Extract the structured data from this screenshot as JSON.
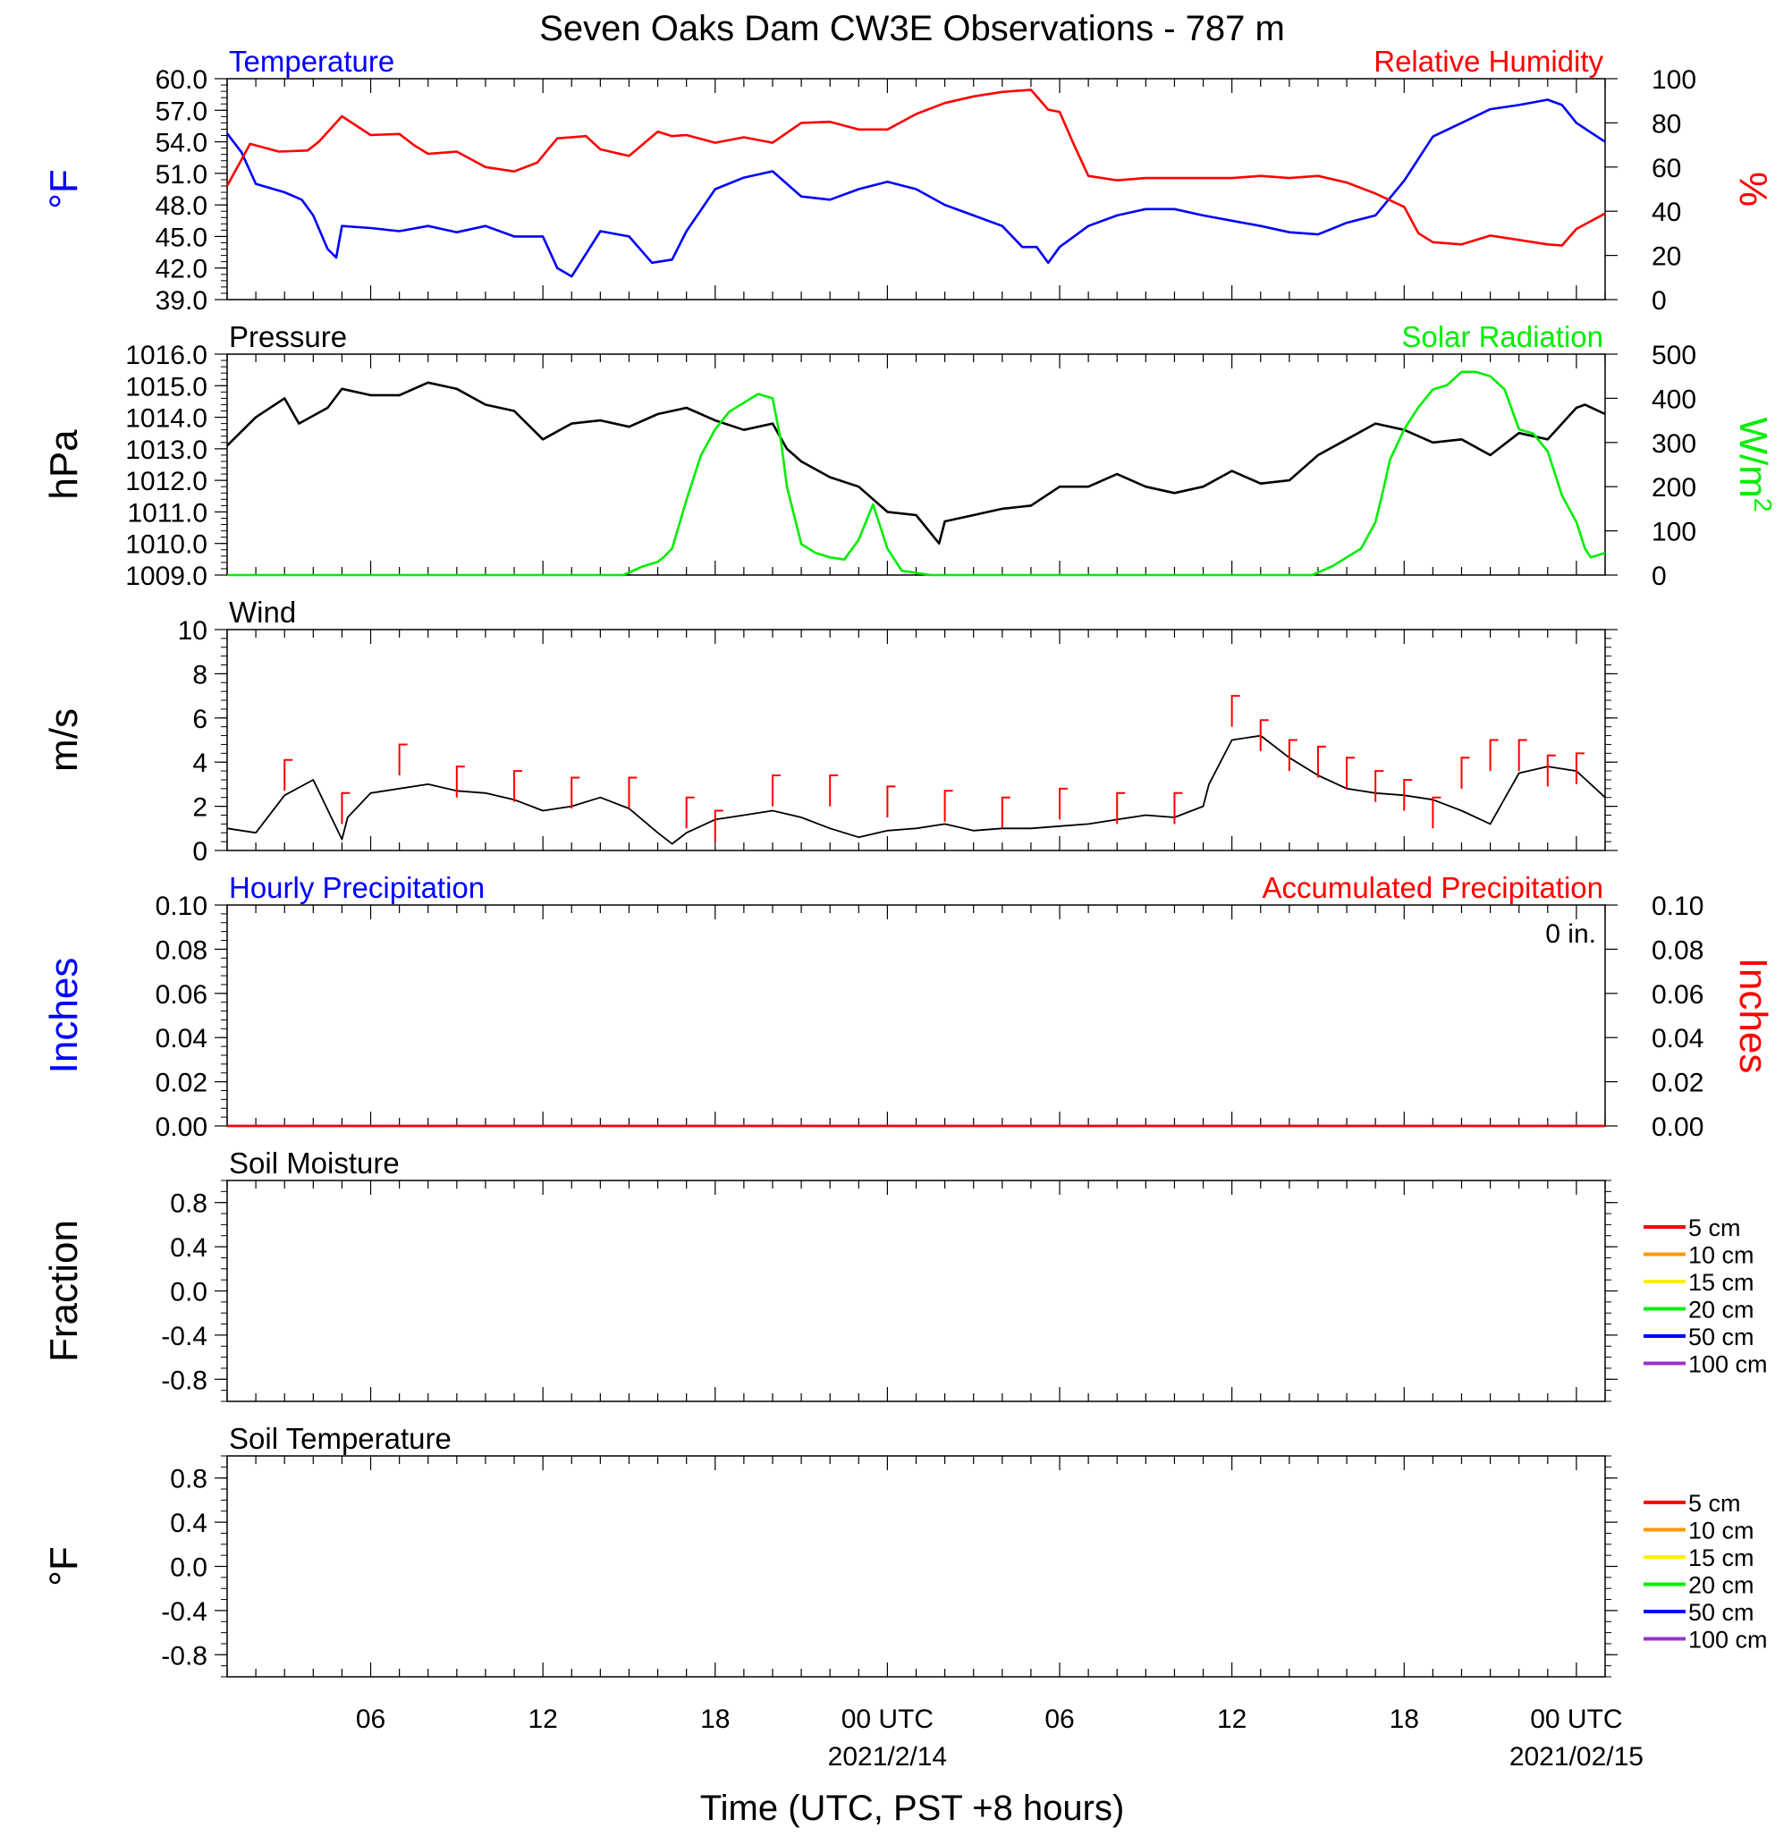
{
  "title": "Seven Oaks Dam CW3E Observations - 787 m",
  "xlabel": "Time (UTC, PST +8 hours)",
  "colors": {
    "blue": "#0000ff",
    "red": "#ff0000",
    "green": "#00ee00",
    "black": "#000000"
  },
  "x_ticks": [
    {
      "hour": 6,
      "label": "06",
      "sub": ""
    },
    {
      "hour": 12,
      "label": "12",
      "sub": ""
    },
    {
      "hour": 18,
      "label": "18",
      "sub": ""
    },
    {
      "hour": 24,
      "label": "00 UTC",
      "sub": "2021/2/14"
    },
    {
      "hour": 30,
      "label": "06",
      "sub": ""
    },
    {
      "hour": 36,
      "label": "12",
      "sub": ""
    },
    {
      "hour": 42,
      "label": "18",
      "sub": ""
    },
    {
      "hour": 48,
      "label": "00 UTC",
      "sub": "2021/02/15"
    }
  ],
  "chart_data": [
    {
      "type": "line",
      "title_left": "Temperature",
      "title_right": "Relative Humidity",
      "ylabel_left": "°F",
      "ylabel_right": "%",
      "x_range_hours": [
        1,
        49
      ],
      "ylim_left": [
        39.0,
        60.0
      ],
      "ylim_right": [
        0,
        100
      ],
      "yticks_left": [
        "39.0",
        "42.0",
        "45.0",
        "48.0",
        "51.0",
        "54.0",
        "57.0",
        "60.0"
      ],
      "yticks_right": [
        "0",
        "20",
        "40",
        "60",
        "80",
        "100"
      ],
      "series": [
        {
          "name": "Temperature",
          "axis": "left",
          "color": "#0000ff",
          "x": [
            1,
            1.5,
            2,
            3,
            3.6,
            4,
            4.5,
            4.8,
            5,
            6,
            7,
            8,
            9,
            10,
            11,
            12,
            12.5,
            13,
            14,
            15,
            15.8,
            16.5,
            17,
            18,
            19,
            20,
            21,
            22,
            23,
            24,
            25,
            26,
            27,
            28,
            28.7,
            29.2,
            29.6,
            30,
            31,
            32,
            33,
            34,
            35,
            36,
            37,
            38,
            39,
            40,
            41,
            42,
            43,
            44,
            45,
            46,
            47,
            47.5,
            48,
            48.5,
            49
          ],
          "y": [
            54.8,
            53.0,
            50.0,
            49.2,
            48.5,
            47.0,
            43.8,
            43.0,
            46.0,
            45.8,
            45.5,
            46.0,
            45.4,
            46.0,
            45.0,
            45.0,
            42.0,
            41.2,
            45.5,
            45.0,
            42.5,
            42.8,
            45.5,
            49.5,
            50.6,
            51.2,
            48.8,
            48.5,
            49.5,
            50.2,
            49.5,
            48.0,
            47.0,
            46.0,
            44.0,
            44.0,
            42.5,
            44.0,
            46.0,
            47.0,
            47.6,
            47.6,
            47.0,
            46.5,
            46.0,
            45.4,
            45.2,
            46.3,
            47.0,
            50.3,
            54.5,
            55.8,
            57.1,
            57.5,
            58.0,
            57.5,
            55.8,
            54.9,
            54.0
          ]
        },
        {
          "name": "Relative Humidity",
          "axis": "right",
          "color": "#ff0000",
          "x": [
            1,
            1.8,
            2.8,
            3.8,
            4.2,
            5,
            6,
            7,
            7.5,
            8,
            9,
            10,
            11,
            11.8,
            12.5,
            13.5,
            14,
            15,
            16,
            16.5,
            17,
            18,
            19,
            20,
            21,
            22,
            23,
            24,
            25,
            26,
            27,
            28,
            29,
            29.6,
            30,
            30.5,
            31,
            32,
            33,
            34,
            35,
            36,
            37,
            38,
            39,
            40,
            41,
            42,
            42.5,
            43,
            44,
            45,
            46,
            47,
            47.5,
            48,
            49
          ],
          "y": [
            51.5,
            70.5,
            67,
            67.5,
            71.5,
            83,
            74.5,
            75,
            70,
            66,
            67,
            60,
            58,
            62,
            73,
            74,
            68,
            65,
            76,
            74,
            74.5,
            71,
            73.5,
            71,
            80,
            80.5,
            77,
            77,
            84,
            89,
            92,
            94,
            95,
            86,
            85,
            70,
            56,
            54,
            55,
            55,
            55,
            55,
            56,
            55,
            56,
            53,
            48,
            42,
            30,
            26,
            25,
            29,
            27,
            25,
            24.5,
            32,
            39
          ]
        }
      ]
    },
    {
      "type": "line",
      "title_left": "Pressure",
      "title_right": "Solar Radiation",
      "ylabel_left": "hPa",
      "ylabel_right": "W/m",
      "ylabel_right_sup": "2",
      "x_range_hours": [
        1,
        49
      ],
      "ylim_left": [
        1009.0,
        1016.0
      ],
      "ylim_right": [
        0,
        500
      ],
      "yticks_left": [
        "1009.0",
        "1010.0",
        "1011.0",
        "1012.0",
        "1013.0",
        "1014.0",
        "1015.0",
        "1016.0"
      ],
      "yticks_right": [
        "0",
        "100",
        "200",
        "300",
        "400",
        "500"
      ],
      "series": [
        {
          "name": "Pressure",
          "axis": "left",
          "color": "#000000",
          "x": [
            1,
            2,
            3,
            3.5,
            4.5,
            5,
            6,
            7,
            8,
            9,
            10,
            11,
            12,
            13,
            14,
            15,
            16,
            17,
            18,
            19,
            20,
            20.5,
            21,
            22,
            23,
            24,
            25,
            25.8,
            26,
            27,
            28,
            29,
            30,
            31,
            32,
            33,
            34,
            35,
            36,
            37,
            38,
            39,
            40,
            41,
            42,
            43,
            44,
            45,
            46,
            47,
            48,
            48.3,
            49
          ],
          "y": [
            1013.1,
            1014.0,
            1014.6,
            1013.8,
            1014.3,
            1014.9,
            1014.7,
            1014.7,
            1015.1,
            1014.9,
            1014.4,
            1014.2,
            1013.3,
            1013.8,
            1013.9,
            1013.7,
            1014.1,
            1014.3,
            1013.9,
            1013.6,
            1013.8,
            1013.0,
            1012.6,
            1012.1,
            1011.8,
            1011.0,
            1010.9,
            1010.0,
            1010.7,
            1010.9,
            1011.1,
            1011.2,
            1011.8,
            1011.8,
            1012.2,
            1011.8,
            1011.6,
            1011.8,
            1012.3,
            1011.9,
            1012.0,
            1012.8,
            1013.3,
            1013.8,
            1013.6,
            1013.2,
            1013.3,
            1012.8,
            1013.5,
            1013.3,
            1014.3,
            1014.4,
            1014.1
          ]
        },
        {
          "name": "Solar Radiation",
          "axis": "right",
          "color": "#00ee00",
          "x": [
            1,
            14.8,
            15.5,
            16,
            16.2,
            16.5,
            17,
            17.5,
            18,
            18.5,
            19,
            19.5,
            20,
            20.3,
            20.5,
            21,
            21.5,
            22,
            22.5,
            23,
            23.5,
            24,
            24.5,
            25,
            25.5,
            38.8,
            39.5,
            40,
            40.5,
            41,
            41.3,
            41.5,
            42,
            42.5,
            43,
            43.5,
            44,
            44.5,
            45,
            45.5,
            46,
            46.5,
            47,
            47.5,
            48,
            48.3,
            48.5,
            49
          ],
          "y": [
            0,
            0,
            20,
            30,
            40,
            60,
            170,
            270,
            330,
            370,
            390,
            410,
            400,
            300,
            200,
            70,
            50,
            40,
            35,
            80,
            160,
            60,
            10,
            5,
            0,
            0,
            20,
            40,
            60,
            120,
            200,
            260,
            330,
            380,
            420,
            430,
            460,
            460,
            450,
            420,
            330,
            320,
            280,
            180,
            120,
            60,
            40,
            50
          ]
        }
      ]
    },
    {
      "type": "line",
      "title_left": "Wind",
      "ylabel_left": "m/s",
      "x_range_hours": [
        1,
        49
      ],
      "ylim_left": [
        0,
        10
      ],
      "yticks_left": [
        "0",
        "2",
        "4",
        "6",
        "8",
        "10"
      ],
      "series": [
        {
          "name": "Wind",
          "axis": "left",
          "color": "#000000",
          "x": [
            1,
            2,
            3,
            4,
            5,
            5.2,
            6,
            7,
            8,
            9,
            10,
            11,
            12,
            13,
            14,
            15,
            16,
            16.5,
            17,
            18,
            19,
            20,
            21,
            22,
            23,
            24,
            25,
            26,
            27,
            28,
            29,
            30,
            31,
            32,
            33,
            34,
            35,
            35.2,
            36,
            37,
            38,
            39,
            40,
            41,
            42,
            43,
            44,
            45,
            46,
            47,
            48,
            49
          ],
          "y": [
            1.0,
            0.8,
            2.5,
            3.2,
            0.5,
            1.5,
            2.6,
            2.8,
            3.0,
            2.7,
            2.6,
            2.3,
            1.8,
            2.0,
            2.4,
            1.9,
            0.8,
            0.3,
            0.8,
            1.4,
            1.6,
            1.8,
            1.5,
            1.0,
            0.6,
            0.9,
            1.0,
            1.2,
            0.9,
            1.0,
            1.0,
            1.1,
            1.2,
            1.4,
            1.6,
            1.5,
            2.0,
            3.0,
            5.0,
            5.2,
            4.2,
            3.4,
            2.8,
            2.6,
            2.5,
            2.3,
            1.8,
            1.2,
            3.5,
            3.8,
            3.6,
            2.4
          ]
        },
        {
          "name": "Wind gust",
          "axis": "left",
          "color": "#ff0000",
          "x": [
            3,
            5,
            7,
            9,
            11,
            13,
            15,
            17,
            18,
            20,
            22,
            24,
            26,
            28,
            30,
            32,
            34,
            36,
            37,
            38,
            39,
            40,
            41,
            42,
            43,
            44,
            45,
            46,
            47,
            48
          ],
          "y": [
            4.1,
            2.6,
            4.8,
            3.8,
            3.6,
            3.3,
            3.3,
            2.4,
            1.8,
            3.4,
            3.4,
            2.9,
            2.7,
            2.4,
            2.8,
            2.6,
            2.6,
            7.0,
            5.9,
            5.0,
            4.7,
            4.2,
            3.6,
            3.2,
            2.4,
            4.2,
            5.0,
            5.0,
            4.3,
            4.4
          ]
        }
      ]
    },
    {
      "type": "line",
      "title_left": "Hourly Precipitation",
      "title_right": "Accumulated Precipitation",
      "annotation": "0 in.",
      "ylabel_left": "Inches",
      "ylabel_right": "Inches",
      "x_range_hours": [
        1,
        49
      ],
      "ylim_left": [
        0.0,
        0.1
      ],
      "ylim_right": [
        0.0,
        0.1
      ],
      "yticks_left": [
        "0.00",
        "0.02",
        "0.04",
        "0.06",
        "0.08",
        "0.10"
      ],
      "yticks_right": [
        "0.00",
        "0.02",
        "0.04",
        "0.06",
        "0.08",
        "0.10"
      ],
      "series": [
        {
          "name": "Hourly Precipitation",
          "axis": "left",
          "color": "#0000ff",
          "x": [
            1,
            49
          ],
          "y": [
            0,
            0
          ]
        },
        {
          "name": "Accumulated Precipitation",
          "axis": "right",
          "color": "#ff0000",
          "x": [
            1,
            49
          ],
          "y": [
            0,
            0
          ]
        }
      ]
    },
    {
      "type": "line",
      "title_left": "Soil Moisture",
      "ylabel_left": "Fraction",
      "x_range_hours": [
        1,
        49
      ],
      "ylim_left": [
        -1.0,
        1.0
      ],
      "yticks_left": [
        "-0.8",
        "-0.4",
        "0.0",
        "0.4",
        "0.8"
      ],
      "legend": [
        {
          "label": "5 cm",
          "color": "#ff0000"
        },
        {
          "label": "10 cm",
          "color": "#ff9900"
        },
        {
          "label": "15 cm",
          "color": "#ffee00"
        },
        {
          "label": "20 cm",
          "color": "#00ee00"
        },
        {
          "label": "50 cm",
          "color": "#0000ff"
        },
        {
          "label": "100 cm",
          "color": "#9933cc"
        }
      ],
      "series": []
    },
    {
      "type": "line",
      "title_left": "Soil Temperature",
      "ylabel_left": "°F",
      "x_range_hours": [
        1,
        49
      ],
      "ylim_left": [
        -1.0,
        1.0
      ],
      "yticks_left": [
        "-0.8",
        "-0.4",
        "0.0",
        "0.4",
        "0.8"
      ],
      "legend": [
        {
          "label": "5 cm",
          "color": "#ff0000"
        },
        {
          "label": "10 cm",
          "color": "#ff9900"
        },
        {
          "label": "15 cm",
          "color": "#ffee00"
        },
        {
          "label": "20 cm",
          "color": "#00ee00"
        },
        {
          "label": "50 cm",
          "color": "#0000ff"
        },
        {
          "label": "100 cm",
          "color": "#9933cc"
        }
      ],
      "series": []
    }
  ]
}
